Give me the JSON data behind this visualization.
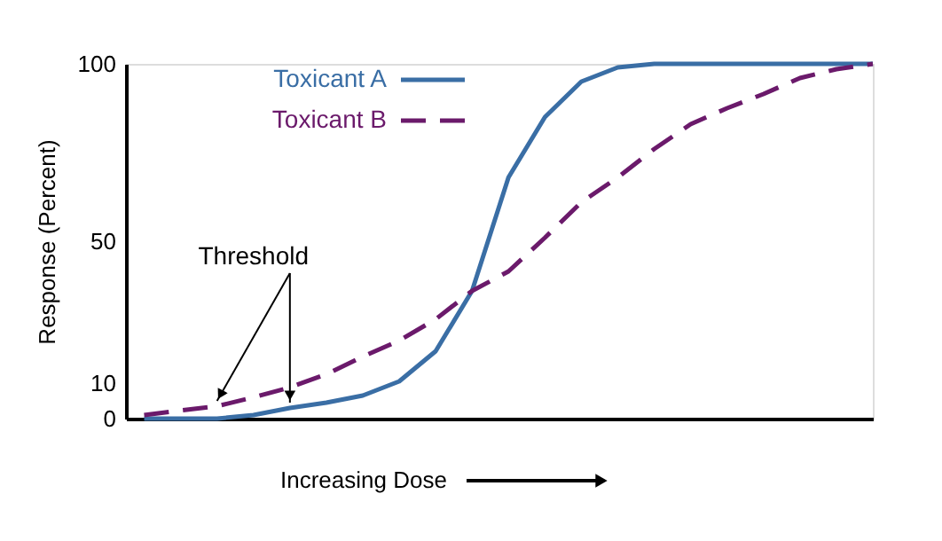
{
  "chart_data": {
    "type": "line",
    "ylabel": "Response (Percent)",
    "xlabel": "Increasing Dose",
    "categories": [
      null,
      null,
      null,
      null,
      null,
      null,
      null,
      null,
      null,
      null,
      null,
      null,
      null,
      null,
      null,
      null,
      null,
      null,
      null,
      null,
      null
    ],
    "series": [
      {
        "name": "Toxicant A",
        "color": "#3a6ea5",
        "line_style": "solid",
        "values": [
          0,
          0,
          0,
          1,
          3,
          4.5,
          6.5,
          10.5,
          19,
          36,
          68,
          85,
          95,
          99,
          100,
          100,
          100,
          100,
          100,
          100,
          100
        ]
      },
      {
        "name": "Toxicant B",
        "color": "#6b1a6b",
        "line_style": "dashed",
        "values": [
          1,
          2.3,
          3.5,
          6,
          8.8,
          12.5,
          17.5,
          22,
          28,
          36,
          41.5,
          51,
          61,
          68,
          76,
          83,
          87.5,
          91.5,
          96,
          98.5,
          100
        ]
      }
    ],
    "ylim": [
      0,
      100
    ],
    "yticks": [
      0,
      10,
      50,
      100
    ],
    "tick_labels": "y",
    "grid": false,
    "legend": "top left",
    "marker": "none",
    "annotations": [
      "Threshold"
    ]
  }
}
